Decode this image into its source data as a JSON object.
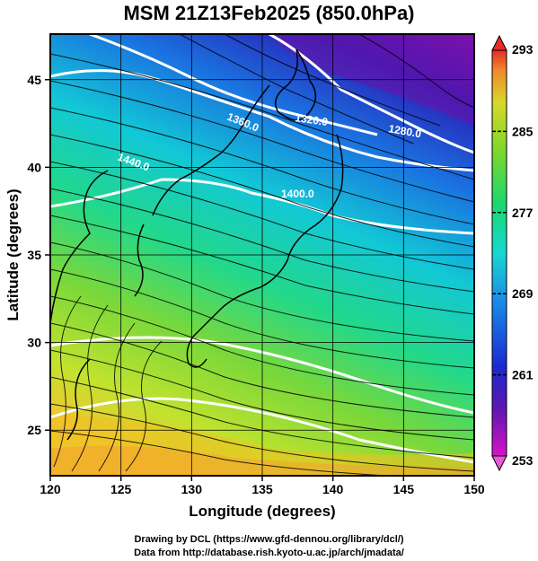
{
  "title": "MSM 21Z13Feb2025 (850.0hPa)",
  "axes": {
    "xlabel": "Longitude (degrees)",
    "ylabel": "Latitude  (degrees)",
    "x_ticks": [
      "120",
      "125",
      "130",
      "135",
      "140",
      "145",
      "150"
    ],
    "y_ticks": [
      "25",
      "30",
      "35",
      "40",
      "45"
    ]
  },
  "colorbar": {
    "ticks": [
      "293",
      "285",
      "277",
      "269",
      "261",
      "253"
    ],
    "min": 253,
    "max": 293
  },
  "contour_labels": [
    "1440.0",
    "1360.0",
    "1320.0",
    "1280.0",
    "1400.0"
  ],
  "footer": {
    "line1": "Drawing by DCL (https://www.gfd-dennou.org/library/dcl/)",
    "line2": "Data from http://database.rish.kyoto-u.ac.jp/arch/jmadata/"
  },
  "chart_data": {
    "type": "heatmap",
    "title": "MSM 21Z13Feb2025 (850.0hPa)",
    "xlabel": "Longitude (degrees)",
    "ylabel": "Latitude  (degrees)",
    "xlim": [
      120,
      150
    ],
    "ylim": [
      22.4,
      47.6
    ],
    "x_ticks": [
      120,
      125,
      130,
      135,
      140,
      145,
      150
    ],
    "y_ticks": [
      25,
      30,
      35,
      40,
      45
    ],
    "colorbar_range": [
      253,
      293
    ],
    "colorbar_ticks": [
      293,
      285,
      277,
      269,
      261,
      253
    ],
    "contours": [
      {
        "label": "1440.0",
        "value": 1440.0
      },
      {
        "label": "1400.0",
        "value": 1400.0
      },
      {
        "label": "1360.0",
        "value": 1360.0
      },
      {
        "label": "1320.0",
        "value": 1320.0
      },
      {
        "label": "1280.0",
        "value": 1280.0
      }
    ],
    "grid": true
  }
}
